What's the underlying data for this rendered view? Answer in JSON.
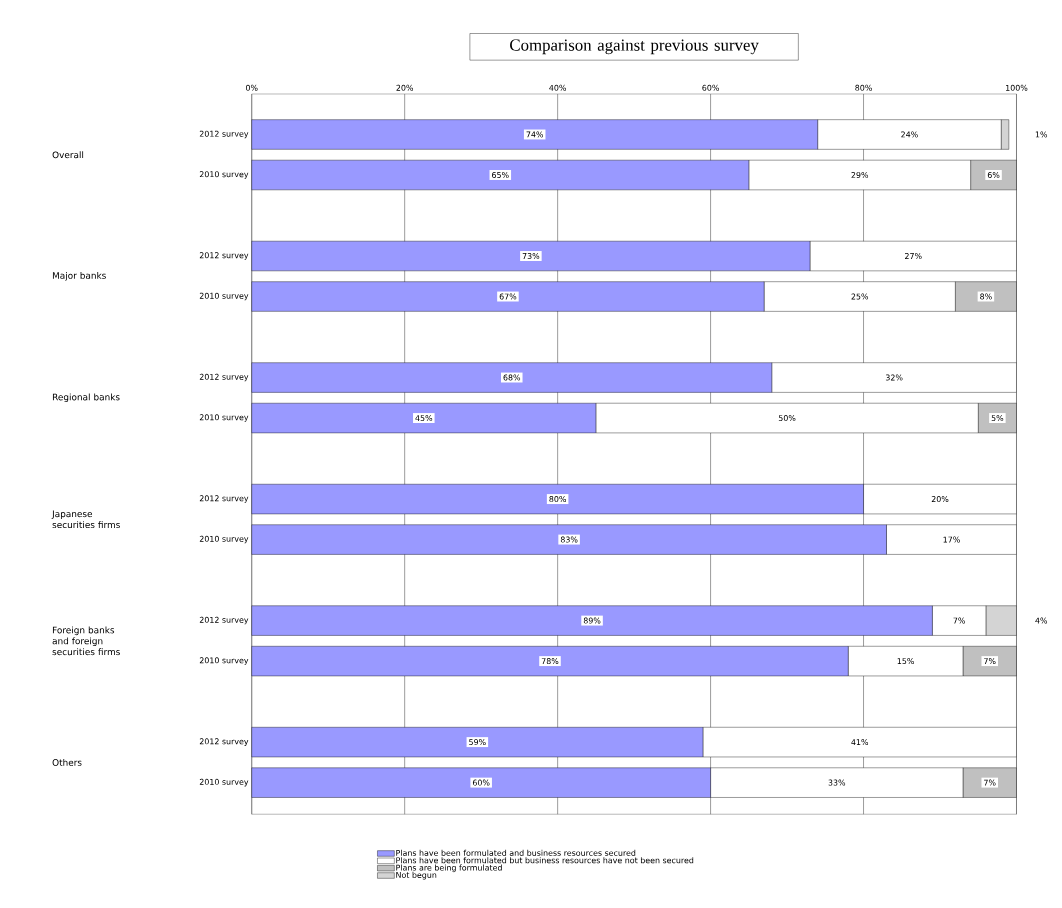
{
  "chart_data": {
    "type": "bar",
    "orientation": "horizontal",
    "stacked": true,
    "title": "Comparison against previous survey",
    "categories": [
      "2012 survey",
      "2010 survey",
      null,
      "2012 survey",
      "2010 survey",
      null,
      "2012 survey",
      "2010 survey",
      null,
      "2012 survey",
      "2010 survey",
      null,
      "2012 survey",
      "2010 survey",
      null,
      "2012 survey",
      "2010 survey"
    ],
    "annotations": [
      "Overall",
      "Major banks",
      "Regional banks",
      "Japanese securities firms",
      "Foreign banks and foreign securities firms",
      "Others"
    ],
    "series": [
      {
        "name": "Plans have been formulated and business resources secured",
        "color": "#9999ff",
        "values": [
          74,
          65,
          null,
          73,
          67,
          null,
          68,
          45,
          null,
          80,
          83,
          null,
          89,
          78,
          null,
          59,
          60
        ],
        "value_labels": [
          "74%",
          "65%",
          null,
          "73%",
          "67%",
          null,
          "68%",
          "45%",
          null,
          "80%",
          "83%",
          null,
          "89%",
          "78%",
          null,
          "59%",
          "60%"
        ]
      },
      {
        "name": "Plans have been formulated but business resources have not been secured",
        "color": "#ffffff",
        "values": [
          24,
          29,
          null,
          27,
          25,
          null,
          32,
          50,
          null,
          20,
          17,
          null,
          7,
          15,
          null,
          41,
          33
        ],
        "value_labels": [
          "24%",
          "29%",
          null,
          "27%",
          "25%",
          null,
          "32%",
          "50%",
          null,
          "20%",
          "17%",
          null,
          "7%",
          "15%",
          null,
          "41%",
          "33%"
        ]
      },
      {
        "name": "Plans are being formulated",
        "color": "#c0c0c0",
        "values": [
          null,
          6,
          null,
          null,
          8,
          null,
          null,
          5,
          null,
          null,
          null,
          null,
          null,
          7,
          null,
          null,
          7
        ],
        "value_labels": [
          null,
          "6%",
          null,
          null,
          "8%",
          null,
          null,
          "5%",
          null,
          null,
          null,
          null,
          null,
          "7%",
          null,
          null,
          "7%"
        ]
      },
      {
        "name": "Not begun",
        "color": "#d4d4d4",
        "values": [
          1,
          null,
          null,
          null,
          null,
          null,
          null,
          null,
          null,
          null,
          null,
          null,
          4,
          null,
          null,
          null,
          null
        ],
        "value_labels": [
          "1%",
          null,
          null,
          null,
          null,
          null,
          null,
          null,
          null,
          null,
          null,
          null,
          "4%",
          null,
          null,
          null,
          null
        ]
      }
    ],
    "xlim": [
      0,
      100
    ],
    "xticks": [
      {
        "value": 0,
        "label": "0%"
      },
      {
        "value": 20,
        "label": "20%"
      },
      {
        "value": 40,
        "label": "40%"
      },
      {
        "value": 60,
        "label": "60%"
      },
      {
        "value": 80,
        "label": "80%"
      },
      {
        "value": 100,
        "label": "100%"
      }
    ],
    "grid": "x",
    "legend": "bottom"
  }
}
